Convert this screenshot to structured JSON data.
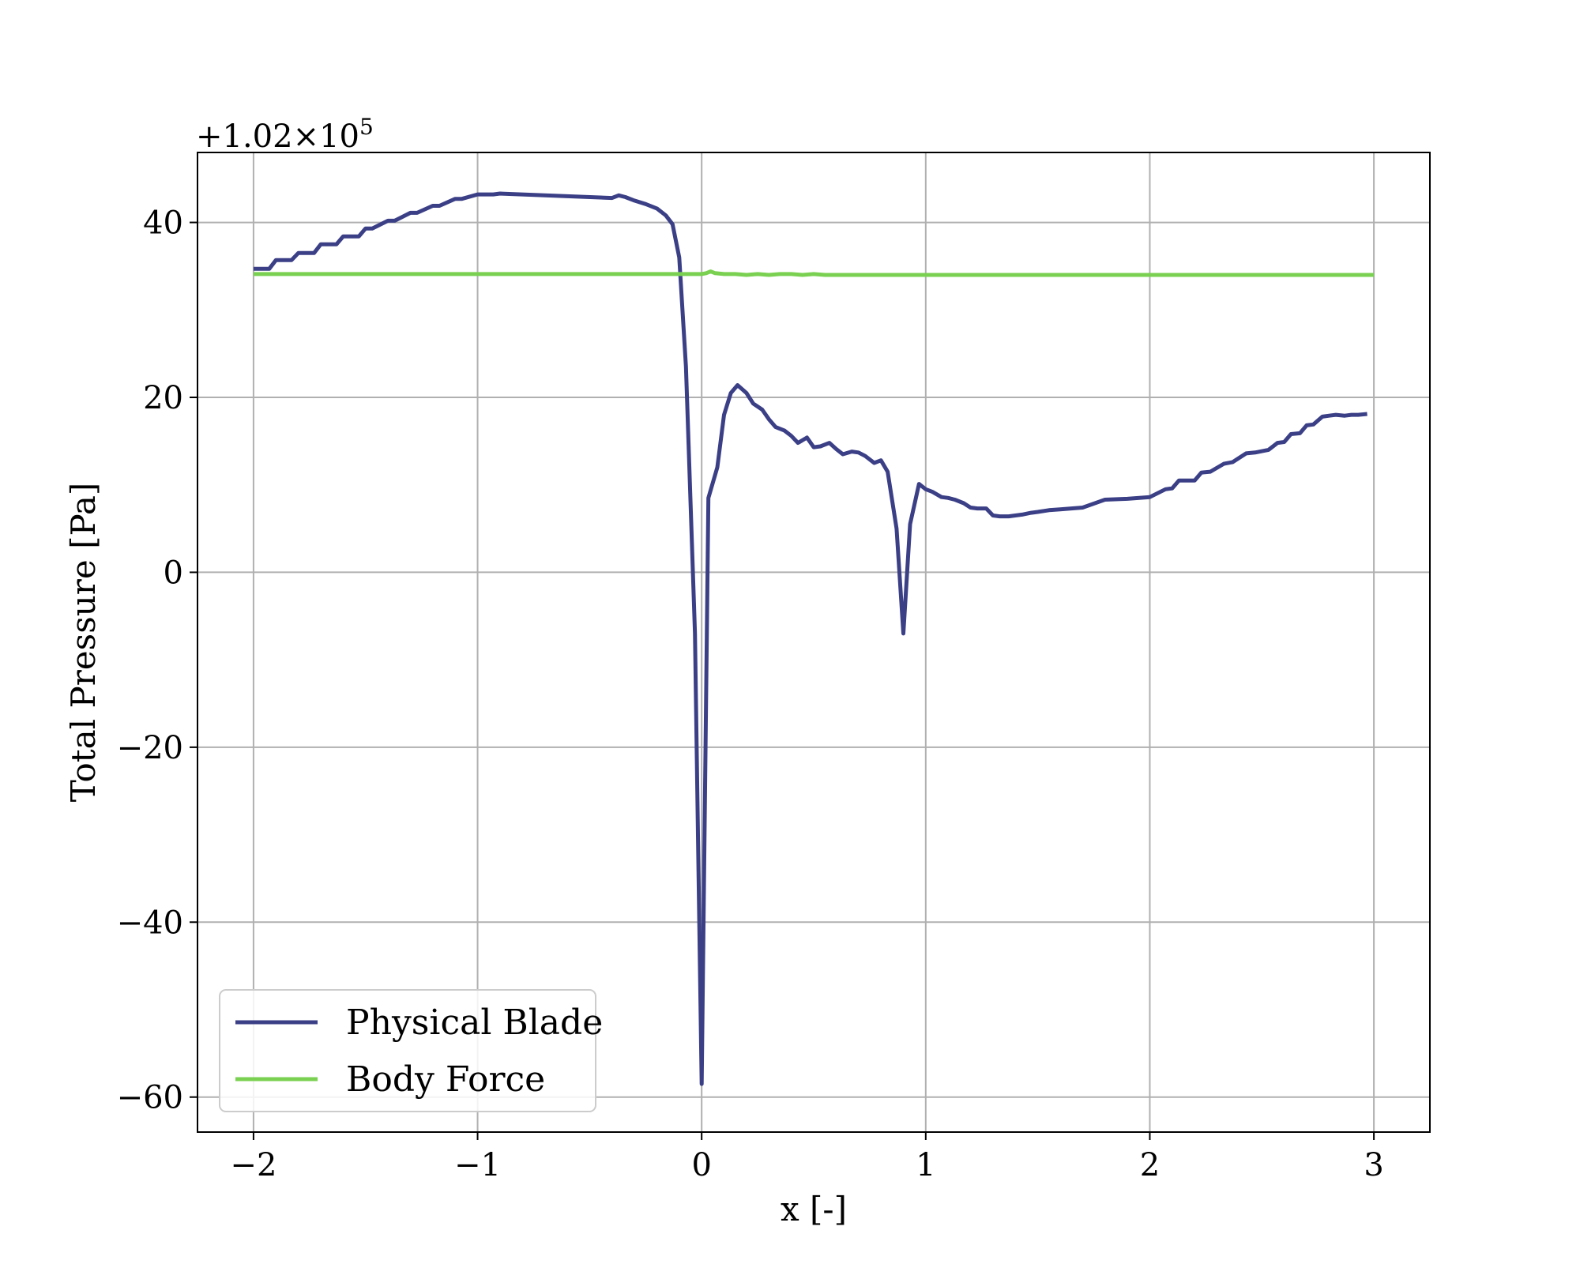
{
  "chart_data": {
    "type": "line",
    "xlabel": "x [-]",
    "ylabel": "Total Pressure [Pa]",
    "y_offset_label": "+1.02×10^5",
    "xlim": [
      -2.25,
      3.25
    ],
    "ylim": [
      -64,
      48
    ],
    "xticks": [
      -2,
      -1,
      0,
      1,
      2,
      3
    ],
    "xtick_labels": [
      "−2",
      "−1",
      "0",
      "1",
      "2",
      "3"
    ],
    "yticks": [
      -60,
      -40,
      -20,
      0,
      20,
      40
    ],
    "ytick_labels": [
      "−60",
      "−40",
      "−20",
      "0",
      "20",
      "40"
    ],
    "grid": true,
    "legend_position": "lower-left",
    "series": [
      {
        "name": "Physical Blade",
        "color": "#3b3f86",
        "x": [
          -2.0,
          -1.93,
          -1.9,
          -1.83,
          -1.8,
          -1.73,
          -1.7,
          -1.63,
          -1.6,
          -1.53,
          -1.5,
          -1.47,
          -1.4,
          -1.37,
          -1.3,
          -1.27,
          -1.2,
          -1.17,
          -1.1,
          -1.07,
          -1.0,
          -0.93,
          -0.9,
          -0.4,
          -0.37,
          -0.34,
          -0.3,
          -0.25,
          -0.2,
          -0.16,
          -0.13,
          -0.1,
          -0.07,
          -0.03,
          0.0,
          0.03,
          0.07,
          0.1,
          0.13,
          0.16,
          0.2,
          0.23,
          0.27,
          0.3,
          0.33,
          0.37,
          0.4,
          0.43,
          0.47,
          0.5,
          0.53,
          0.57,
          0.6,
          0.63,
          0.67,
          0.7,
          0.73,
          0.77,
          0.8,
          0.83,
          0.87,
          0.9,
          0.93,
          0.97,
          1.0,
          1.03,
          1.07,
          1.1,
          1.13,
          1.17,
          1.2,
          1.23,
          1.27,
          1.3,
          1.33,
          1.37,
          1.4,
          1.43,
          1.47,
          1.5,
          1.55,
          1.6,
          1.7,
          1.8,
          1.9,
          2.0,
          2.07,
          2.1,
          2.13,
          2.2,
          2.23,
          2.27,
          2.33,
          2.37,
          2.43,
          2.47,
          2.53,
          2.57,
          2.6,
          2.63,
          2.67,
          2.7,
          2.73,
          2.77,
          2.8,
          2.83,
          2.87,
          2.9,
          2.93,
          2.97
        ],
        "y": [
          34.7,
          34.7,
          35.7,
          35.7,
          36.5,
          36.5,
          37.5,
          37.5,
          38.4,
          38.4,
          39.3,
          39.3,
          40.2,
          40.2,
          41.1,
          41.1,
          41.9,
          41.9,
          42.7,
          42.7,
          43.2,
          43.2,
          43.3,
          42.8,
          43.1,
          42.9,
          42.5,
          42.1,
          41.6,
          40.8,
          39.8,
          36.0,
          23.5,
          -7.0,
          -58.5,
          8.5,
          12.0,
          18.0,
          20.5,
          21.4,
          20.5,
          19.3,
          18.6,
          17.5,
          16.6,
          16.2,
          15.6,
          14.8,
          15.4,
          14.3,
          14.4,
          14.8,
          14.1,
          13.5,
          13.8,
          13.7,
          13.3,
          12.5,
          12.8,
          11.5,
          5.0,
          -7.0,
          5.5,
          10.1,
          9.5,
          9.2,
          8.6,
          8.5,
          8.3,
          7.9,
          7.4,
          7.3,
          7.3,
          6.5,
          6.4,
          6.4,
          6.5,
          6.6,
          6.8,
          6.9,
          7.1,
          7.2,
          7.4,
          8.3,
          8.4,
          8.6,
          9.5,
          9.6,
          10.5,
          10.5,
          11.4,
          11.5,
          12.4,
          12.6,
          13.6,
          13.7,
          14.0,
          14.8,
          14.9,
          15.8,
          15.9,
          16.8,
          16.9,
          17.8,
          17.9,
          18.0,
          17.9,
          18.0,
          18.0,
          18.1
        ]
      },
      {
        "name": "Body Force",
        "color": "#7ad151",
        "x": [
          -2.0,
          -1.0,
          0.0,
          0.02,
          0.04,
          0.06,
          0.1,
          0.15,
          0.2,
          0.25,
          0.3,
          0.35,
          0.4,
          0.45,
          0.5,
          0.55,
          0.6,
          0.7,
          0.8,
          1.0,
          1.5,
          2.0,
          2.5,
          3.0
        ],
        "y": [
          34.1,
          34.1,
          34.1,
          34.2,
          34.4,
          34.2,
          34.1,
          34.1,
          34.0,
          34.1,
          34.0,
          34.1,
          34.1,
          34.0,
          34.1,
          34.0,
          34.0,
          34.0,
          34.0,
          34.0,
          34.0,
          34.0,
          34.0,
          34.0
        ]
      }
    ]
  }
}
